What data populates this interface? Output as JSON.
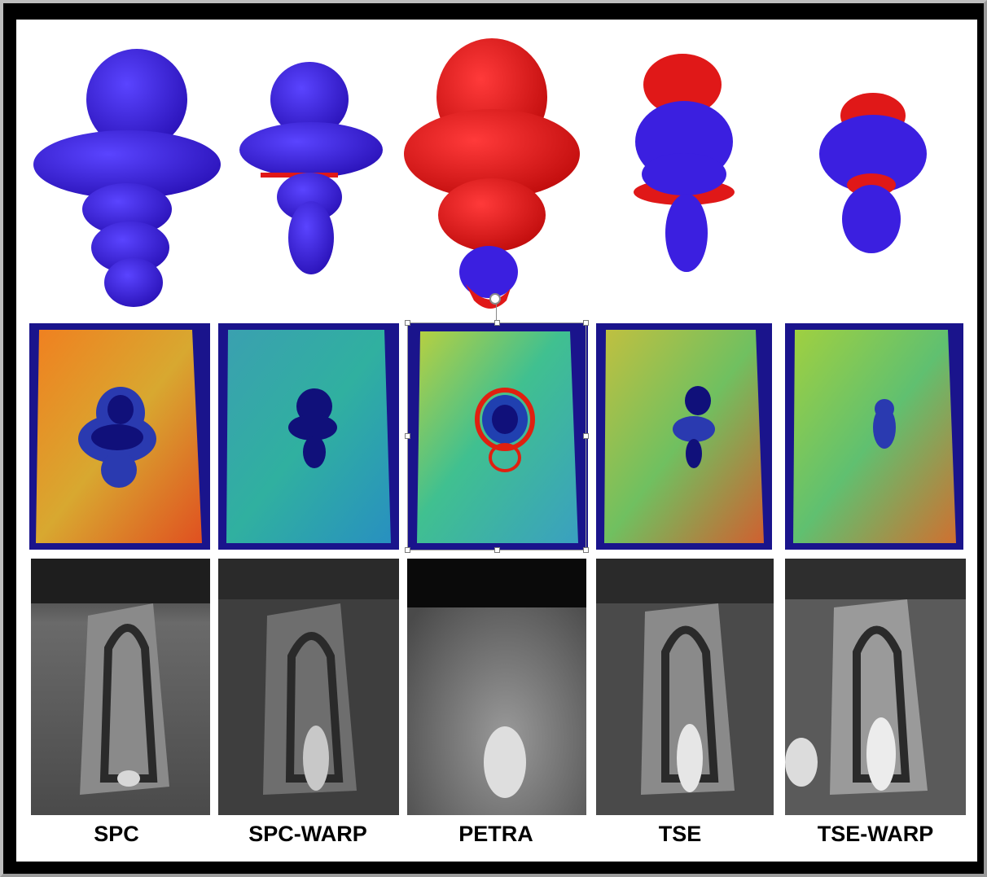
{
  "figure": {
    "columns": [
      {
        "id": "spc",
        "label": "SPC"
      },
      {
        "id": "spc-warp",
        "label": "SPC-WARP"
      },
      {
        "id": "petra",
        "label": "PETRA"
      },
      {
        "id": "tse",
        "label": "TSE"
      },
      {
        "id": "tse-warp",
        "label": "TSE-WARP"
      }
    ],
    "rows": [
      "3d-surface-render",
      "color-map-slice",
      "grayscale-mri"
    ],
    "colors": {
      "surface_blue": "#3b1fe0",
      "surface_red": "#e01818",
      "map_background": "#1a148c",
      "frame": "#000000"
    }
  }
}
